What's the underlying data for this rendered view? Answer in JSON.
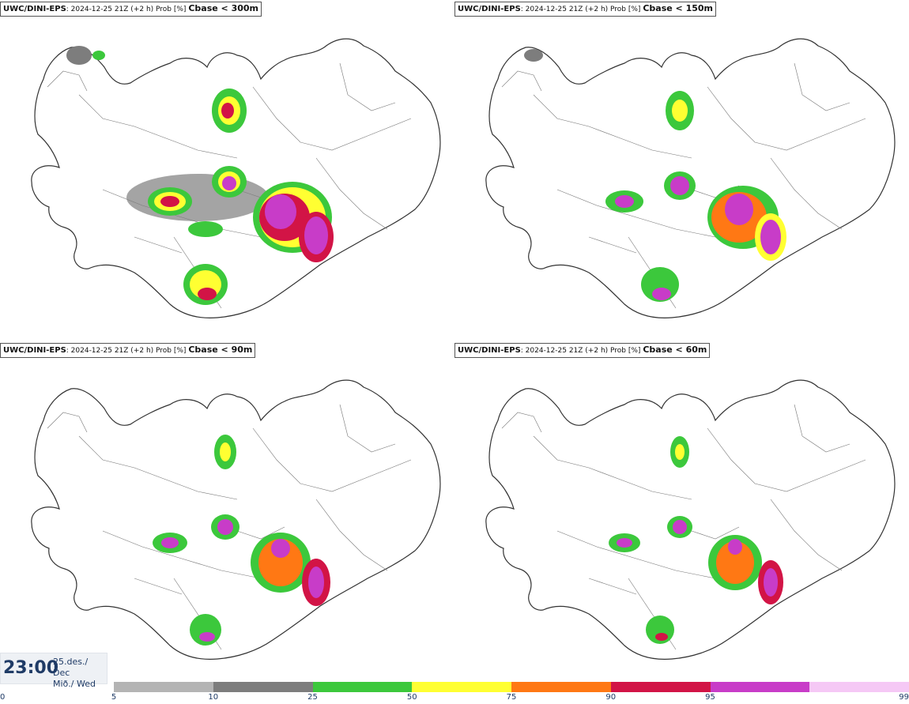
{
  "panels": [
    {
      "model": "UWC/DINI-EPS",
      "info": ": 2024-12-25 21Z (+2 h) Prob [%]",
      "param": "Cbase < 300m"
    },
    {
      "model": "UWC/DINI-EPS",
      "info": ": 2024-12-25 21Z (+2 h) Prob [%]",
      "param": "Cbase < 150m"
    },
    {
      "model": "UWC/DINI-EPS",
      "info": ": 2024-12-25 21Z (+2 h) Prob [%]",
      "param": "Cbase < 90m"
    },
    {
      "model": "UWC/DINI-EPS",
      "info": ": 2024-12-25 21Z (+2 h) Prob [%]",
      "param": "Cbase < 60m"
    }
  ],
  "valid_time": {
    "time": "23:00",
    "date_line1": "25.des./ Dec",
    "date_line2": "Mið./ Wed"
  },
  "colorbar": {
    "ticks": [
      "0",
      "5",
      "10",
      "25",
      "50",
      "75",
      "90",
      "95",
      "99"
    ],
    "colors": [
      "#b4b4b4",
      "#7d7d7d",
      "#3cc83c",
      "#ffff32",
      "#ff7814",
      "#d21446",
      "#c83cc8",
      "#f5c8f5"
    ]
  }
}
